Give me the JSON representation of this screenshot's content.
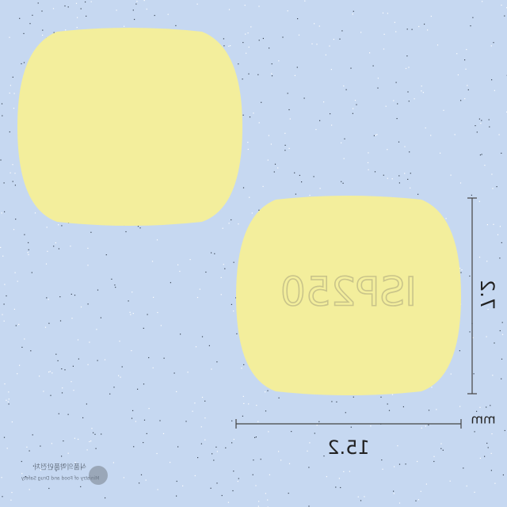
{
  "imprint": "ISP250",
  "dimensions": {
    "width": "15.2",
    "height": "7.2",
    "unit": "mm"
  },
  "logo": {
    "korean": "식품의약품안전처",
    "english": "Ministry of Food and Drug Safety"
  }
}
